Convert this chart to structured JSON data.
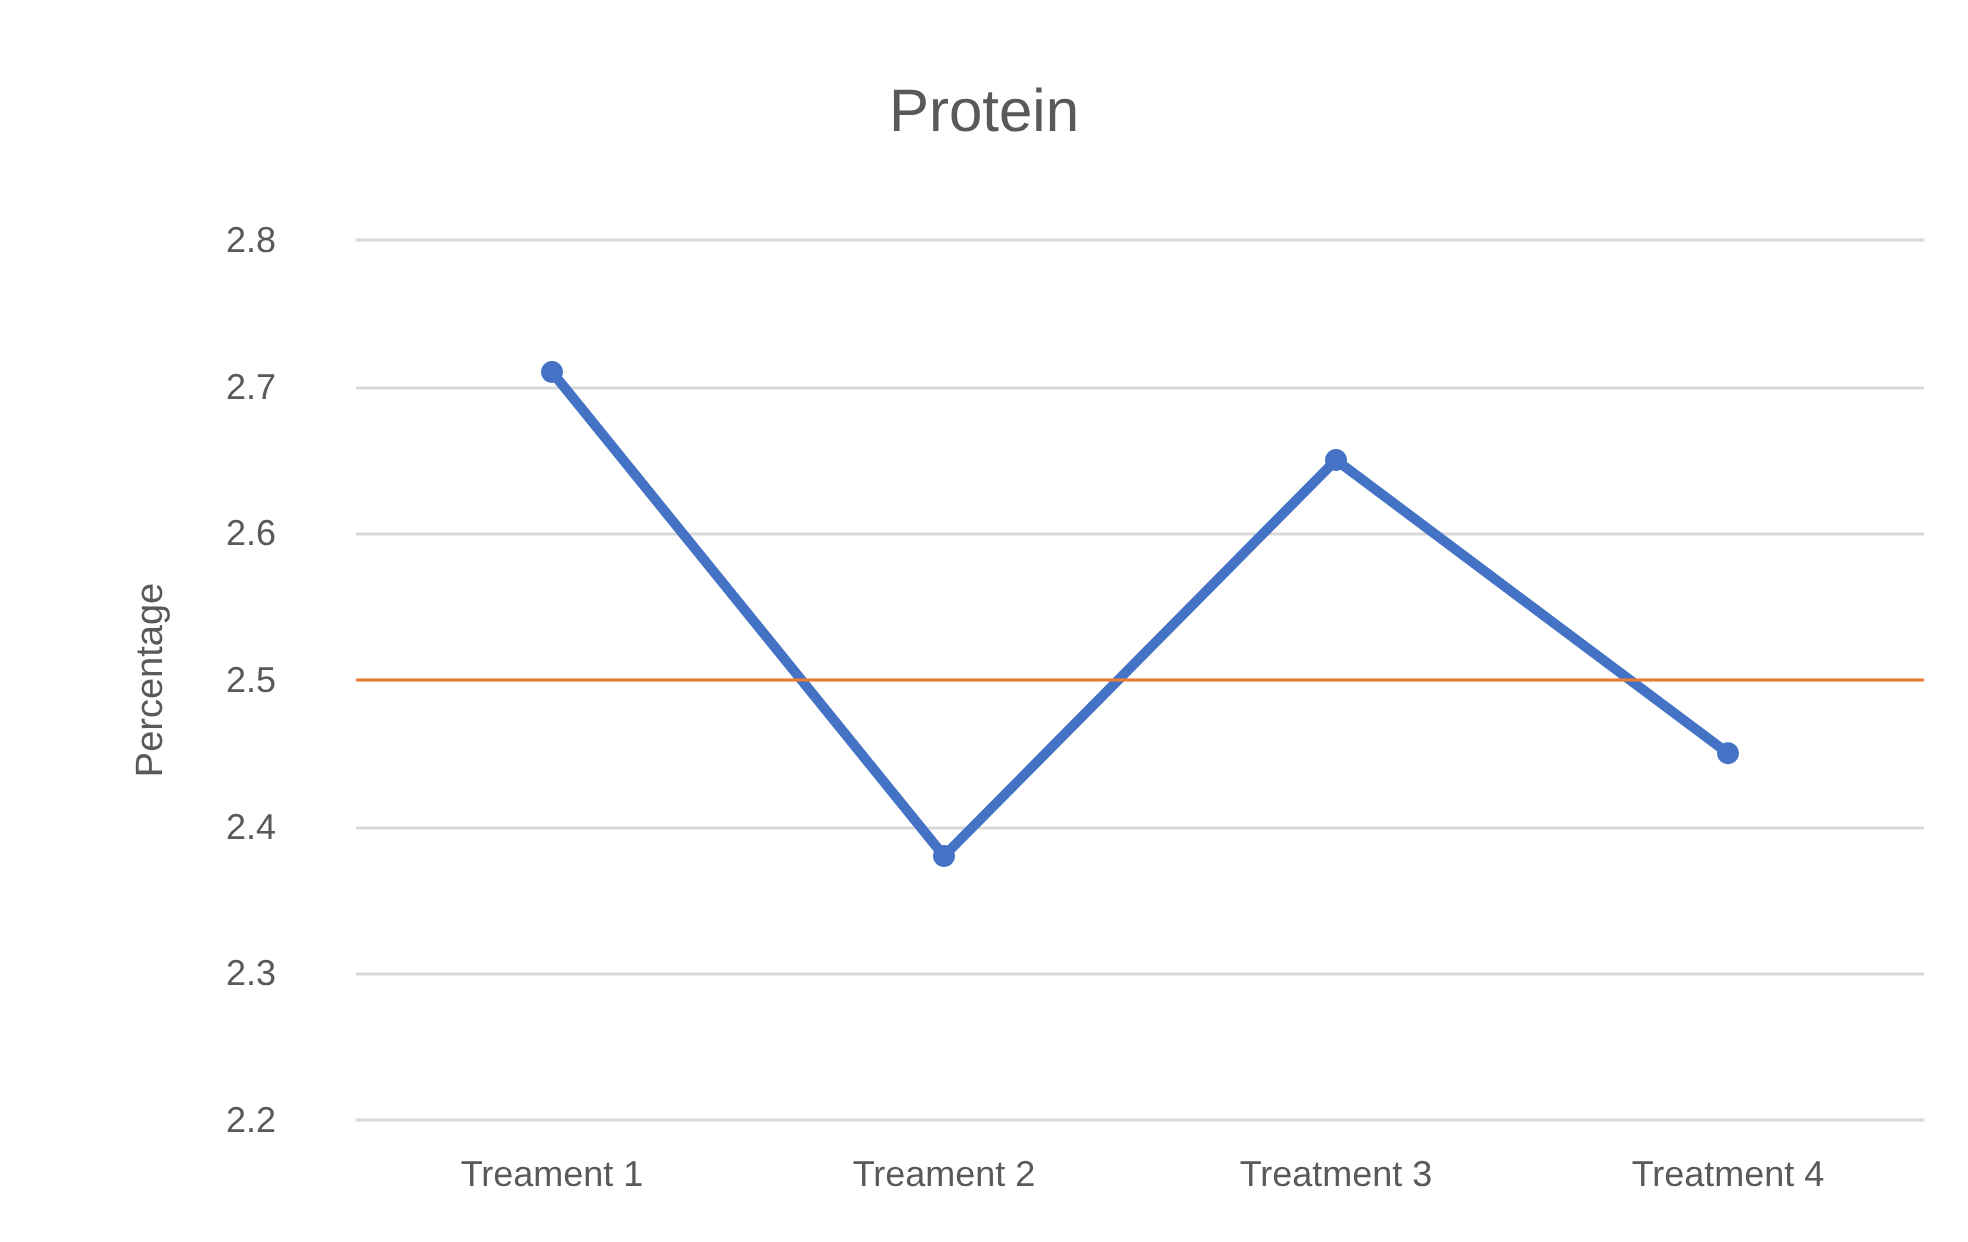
{
  "chart_data": {
    "type": "line",
    "title": "Protein",
    "ylabel": "Percentage",
    "categories": [
      "Treament 1",
      "Treament 2",
      "Treatment 3",
      "Treatment 4"
    ],
    "series": [
      {
        "color": "#4472c4",
        "values": [
          2.71,
          2.38,
          2.65,
          2.45
        ]
      }
    ],
    "ylim": [
      2.2,
      2.8
    ],
    "yticks": [
      2.2,
      2.3,
      2.4,
      2.5,
      2.6,
      2.7,
      2.8
    ],
    "grid": "y",
    "marker": "circle",
    "line_style": "solid",
    "ref_lines": [
      {
        "axis": "y",
        "value": 2.5,
        "color": "#ed7d31"
      }
    ]
  }
}
